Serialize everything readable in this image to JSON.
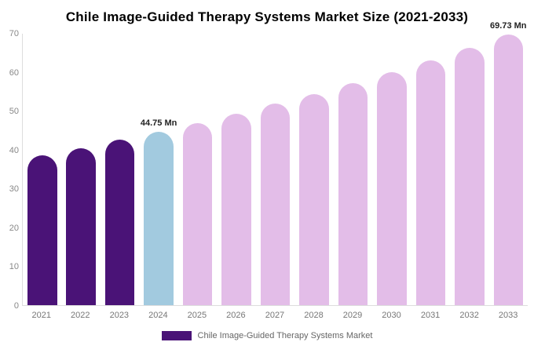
{
  "title": "Chile Image-Guided Therapy Systems Market Size (2021-2033)",
  "chart_data": {
    "type": "bar",
    "title": "Chile Image-Guided Therapy Systems Market Size (2021-2033)",
    "categories": [
      "2021",
      "2022",
      "2023",
      "2024",
      "2025",
      "2026",
      "2027",
      "2028",
      "2029",
      "2030",
      "2031",
      "2032",
      "2033"
    ],
    "values": [
      38.6,
      40.5,
      42.6,
      44.75,
      47.0,
      49.4,
      51.9,
      54.5,
      57.2,
      60.1,
      63.2,
      66.4,
      69.73
    ],
    "unit": "Mn",
    "bar_colors": [
      "#4A1377",
      "#4A1377",
      "#4A1377",
      "#A2CADF",
      "#E3BDE8",
      "#E3BDE8",
      "#E3BDE8",
      "#E3BDE8",
      "#E3BDE8",
      "#E3BDE8",
      "#E3BDE8",
      "#E3BDE8",
      "#E3BDE8"
    ],
    "xlabel": "",
    "ylabel": "",
    "ylim": [
      0,
      70
    ],
    "yticks": [
      0,
      10,
      20,
      30,
      40,
      50,
      60,
      70
    ],
    "grid": false,
    "legend_position": "bottom",
    "annotations": [
      {
        "category": "2024",
        "text": "44.75 Mn"
      },
      {
        "category": "2033",
        "text": "69.73 Mn"
      }
    ]
  },
  "legend": {
    "label": "Chile Image-Guided Therapy Systems Market",
    "swatch_color": "#4A1377"
  },
  "colors": {
    "historical_bar": "#4A1377",
    "current_year_bar": "#A2CADF",
    "forecast_bar": "#E3BDE8",
    "axis_line": "#DDDDDD",
    "tick_text": "#888888",
    "annotation_text": "#222222"
  }
}
